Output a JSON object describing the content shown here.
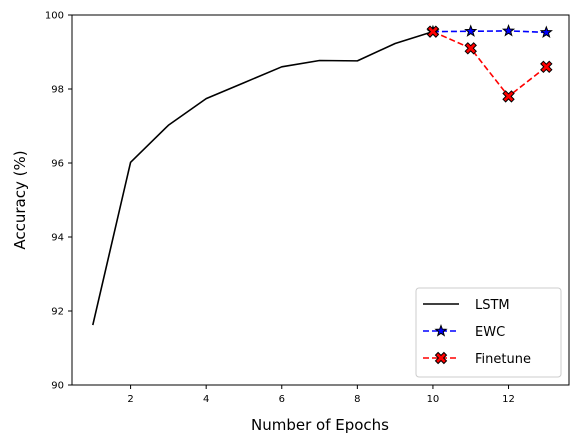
{
  "chart_data": {
    "type": "line",
    "xlabel": "Number of Epochs",
    "ylabel": "Accuracy (%)",
    "xlim": [
      0.45,
      13.6
    ],
    "ylim": [
      90,
      100
    ],
    "xticks": [
      2,
      4,
      6,
      8,
      10,
      12
    ],
    "yticks": [
      90,
      92,
      94,
      96,
      98,
      100
    ],
    "grid": false,
    "legend_position": "bottom-right",
    "series": [
      {
        "name": "LSTM",
        "color": "#000000",
        "style": "solid",
        "marker": "none",
        "x": [
          1,
          2,
          3,
          4,
          5,
          6,
          7,
          8,
          9,
          10
        ],
        "y": [
          91.62,
          96.02,
          97.02,
          97.74,
          98.17,
          98.6,
          98.77,
          98.76,
          99.23,
          99.55
        ]
      },
      {
        "name": "EWC",
        "color": "#0000ff",
        "style": "dashed",
        "marker": "star",
        "x": [
          10,
          11,
          12,
          13
        ],
        "y": [
          99.55,
          99.56,
          99.57,
          99.53
        ]
      },
      {
        "name": "Finetune",
        "color": "#ff0000",
        "style": "dashed",
        "marker": "x-filled",
        "x": [
          10,
          11,
          12,
          13
        ],
        "y": [
          99.55,
          99.1,
          97.8,
          98.6
        ]
      }
    ]
  }
}
